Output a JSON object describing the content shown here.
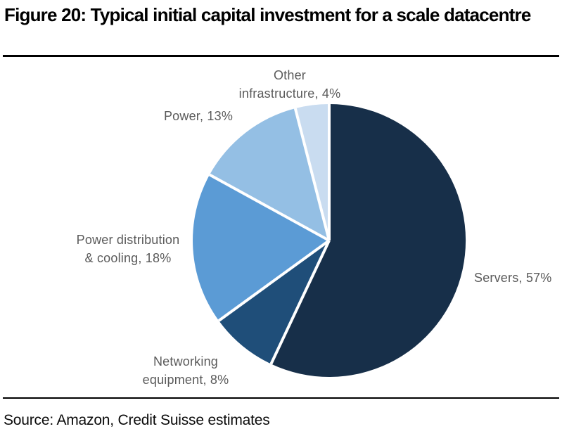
{
  "figure": {
    "title": "Figure 20: Typical initial capital investment for a scale datacentre",
    "source": "Source: Amazon, Credit Suisse estimates"
  },
  "chart_data": {
    "type": "pie",
    "title": "Typical initial capital investment for a scale datacentre",
    "value_unit": "percent",
    "start_angle_deg": 0,
    "direction": "clockwise",
    "slice_border_color": "#FFFFFF",
    "label_color": "#5A5A5A",
    "slices": [
      {
        "name": "Servers",
        "value": 57,
        "color": "#172F49",
        "label_lines": [
          "Servers, 57%"
        ]
      },
      {
        "name": "Networking equipment",
        "value": 8,
        "color": "#1F4E79",
        "label_lines": [
          "Networking",
          "equipment, 8%"
        ]
      },
      {
        "name": "Power distribution & cooling",
        "value": 18,
        "color": "#5B9BD5",
        "label_lines": [
          "Power distribution",
          "& cooling, 18%"
        ]
      },
      {
        "name": "Power",
        "value": 13,
        "color": "#94BFE4",
        "label_lines": [
          "Power, 13%"
        ]
      },
      {
        "name": "Other infrastructure",
        "value": 4,
        "color": "#C9DCF0",
        "label_lines": [
          "Other",
          "infrastructure, 4%"
        ]
      }
    ]
  }
}
